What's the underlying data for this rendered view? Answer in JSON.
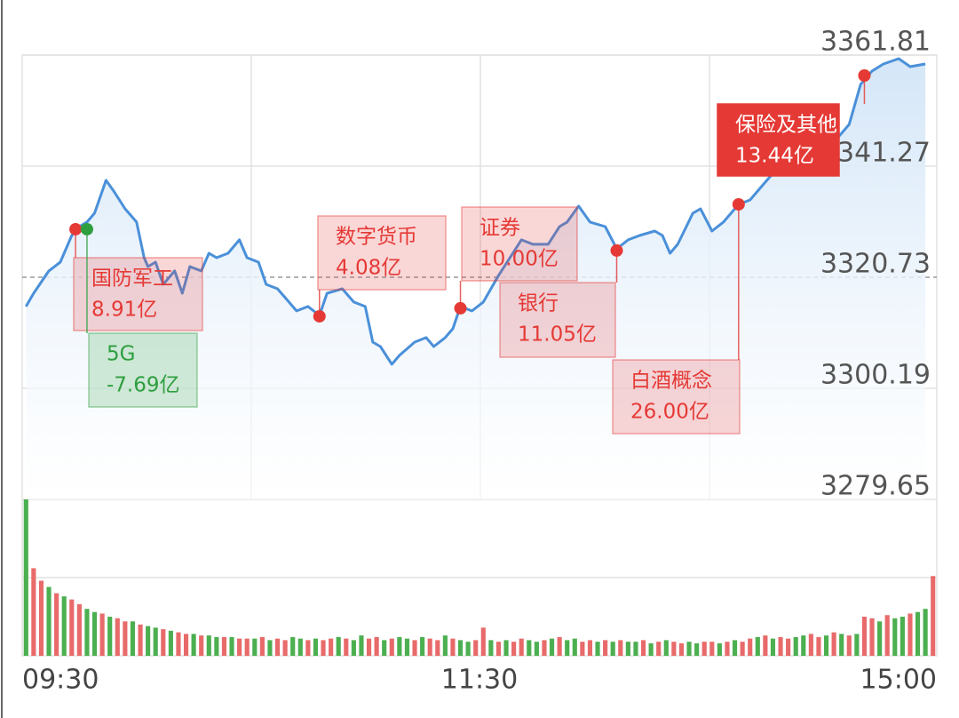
{
  "chart_data": {
    "type": "intraday",
    "xlim": [
      0,
      240
    ],
    "xticks": [
      {
        "value": 0,
        "label": "09:30"
      },
      {
        "value": 120,
        "label": "11:30"
      },
      {
        "value": 240,
        "label": "15:00"
      }
    ],
    "ylim": [
      3279.65,
      3361.81
    ],
    "yticks": [
      3279.65,
      3300.19,
      3320.73,
      3341.27,
      3361.81
    ],
    "reference_line": 3320.73,
    "grid": true,
    "series": [
      {
        "color": "#4a90d9",
        "x": [
          1,
          3,
          7,
          10,
          13,
          15,
          17,
          19,
          22,
          24,
          27,
          30,
          32,
          33,
          35,
          37,
          40,
          42,
          44,
          47,
          49,
          51,
          54,
          57,
          59,
          62,
          64,
          67,
          69,
          72,
          75,
          78,
          80,
          84,
          87,
          90,
          92,
          94,
          97,
          99,
          103,
          106,
          108,
          111,
          113,
          115,
          118,
          121,
          125,
          128,
          131,
          134,
          138,
          141,
          143,
          146,
          149,
          153,
          156,
          159,
          162,
          166,
          168,
          170,
          172,
          176,
          178,
          181,
          184,
          188,
          191,
          194,
          197,
          199,
          204,
          211,
          217,
          220,
          223,
          226,
          230,
          233,
          237
        ],
        "values": [
          3315.32,
          3317.78,
          3321.89,
          3323.53,
          3328.46,
          3330.1,
          3330.93,
          3332.57,
          3338.65,
          3336.68,
          3333.39,
          3330.93,
          3324.35,
          3322.71,
          3323.53,
          3319.42,
          3321.89,
          3317.78,
          3322.71,
          3321.89,
          3325.17,
          3324.35,
          3325.17,
          3327.64,
          3324.35,
          3323.53,
          3319.42,
          3318.6,
          3316.96,
          3314.5,
          3315.32,
          3313.67,
          3317.78,
          3318.6,
          3316.14,
          3315.32,
          3308.74,
          3307.92,
          3304.64,
          3306.28,
          3308.74,
          3309.57,
          3307.92,
          3309.57,
          3311.21,
          3315.32,
          3314.5,
          3316.14,
          3321.07,
          3324.35,
          3327.64,
          3326.82,
          3326.82,
          3330.1,
          3330.93,
          3333.89,
          3330.93,
          3330.1,
          3325.99,
          3327.64,
          3328.46,
          3329.28,
          3328.46,
          3325.17,
          3326.82,
          3332.57,
          3333.39,
          3329.28,
          3330.93,
          3334.21,
          3335.03,
          3337.5,
          3339.96,
          3341.6,
          3342.43,
          3344.07,
          3349.0,
          3356.39,
          3358.86,
          3360.17,
          3361.16,
          3359.68,
          3360.17
        ]
      }
    ],
    "annotations": [
      {
        "x": 14,
        "value": 3329.61,
        "label": "国防军工",
        "amount": "8.91亿",
        "color": "#e53935",
        "highlight": false
      },
      {
        "x": 17,
        "value": 3329.61,
        "label": "5G",
        "amount": "-7.69亿",
        "color": "#2e9e3e",
        "highlight": false
      },
      {
        "x": 78,
        "value": 3313.51,
        "label": "数字货币",
        "amount": "4.08亿",
        "color": "#e53935",
        "highlight": false
      },
      {
        "x": 115,
        "value": 3314.99,
        "label": "证券",
        "amount": "10.00亿",
        "color": "#e53935",
        "highlight": false
      },
      {
        "x": 156,
        "value": 3325.67,
        "label": "银行",
        "amount": "11.05亿",
        "color": "#e53935",
        "highlight": false
      },
      {
        "x": 188,
        "value": 3334.21,
        "label": "白酒概念",
        "amount": "26.00亿",
        "color": "#e53935",
        "highlight": false
      },
      {
        "x": 221,
        "value": 3358.03,
        "label": "保险及其他",
        "amount": "13.44亿",
        "color": "#e53935",
        "highlight": true
      }
    ],
    "volume": {
      "ylim": [
        0,
        100
      ],
      "up_color": "#e86a6a",
      "down_color": "#4caf50",
      "values": [
        100,
        56,
        48,
        44,
        40,
        38,
        36,
        33,
        30,
        28,
        27,
        25,
        24,
        22,
        22,
        20,
        19,
        18,
        17,
        16,
        15,
        14,
        14,
        13,
        13,
        12,
        12,
        12,
        11,
        11,
        11,
        12,
        10,
        11,
        10,
        12,
        11,
        10,
        11,
        10,
        11,
        12,
        11,
        10,
        13,
        11,
        12,
        10,
        11,
        12,
        11,
        10,
        12,
        11,
        10,
        13,
        11,
        10,
        9,
        10,
        18,
        10,
        9,
        10,
        9,
        11,
        10,
        9,
        10,
        11,
        12,
        10,
        11,
        9,
        10,
        9,
        10,
        9,
        10,
        9,
        9,
        10,
        8,
        9,
        10,
        9,
        8,
        9,
        8,
        9,
        9,
        8,
        9,
        10,
        9,
        11,
        12,
        13,
        11,
        12,
        11,
        12,
        13,
        14,
        12,
        13,
        15,
        14,
        13,
        14,
        25,
        24,
        22,
        26,
        24,
        25,
        27,
        28,
        30,
        51
      ],
      "up": [
        false,
        true,
        true,
        false,
        true,
        false,
        true,
        true,
        false,
        false,
        true,
        false,
        true,
        true,
        false,
        true,
        false,
        false,
        true,
        false,
        true,
        true,
        false,
        true,
        false,
        false,
        true,
        false,
        true,
        true,
        false,
        true,
        false,
        true,
        true,
        false,
        false,
        true,
        false,
        true,
        true,
        false,
        true,
        false,
        false,
        true,
        true,
        false,
        true,
        false,
        false,
        true,
        false,
        true,
        true,
        false,
        true,
        false,
        false,
        true,
        true,
        false,
        true,
        false,
        true,
        true,
        false,
        false,
        true,
        false,
        true,
        false,
        false,
        true,
        true,
        false,
        true,
        false,
        true,
        false,
        false,
        true,
        false,
        true,
        false,
        true,
        true,
        false,
        false,
        true,
        true,
        false,
        true,
        false,
        true,
        true,
        false,
        true,
        false,
        true,
        true,
        false,
        false,
        true,
        true,
        false,
        true,
        false,
        true,
        false,
        true,
        true,
        false,
        true,
        false,
        false,
        true,
        false,
        false,
        true
      ]
    }
  }
}
